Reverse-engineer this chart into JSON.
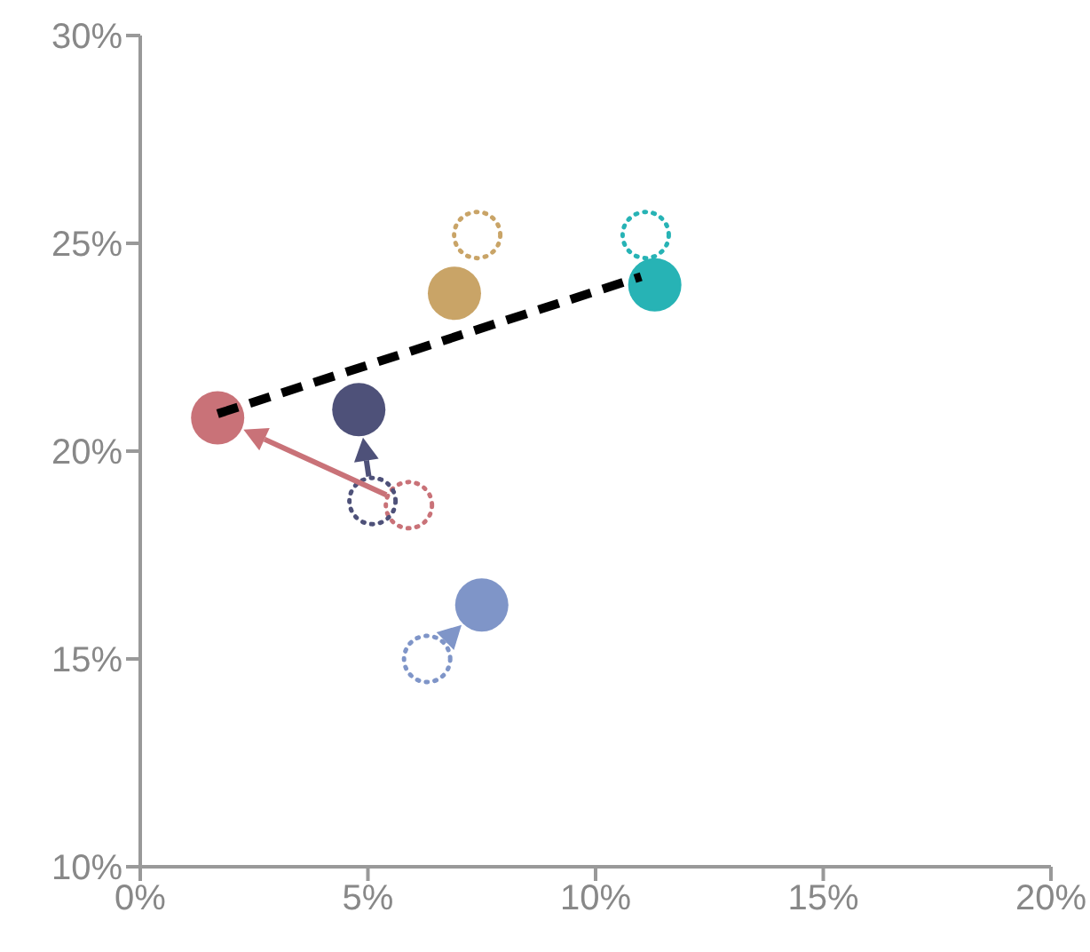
{
  "chart_data": {
    "type": "scatter",
    "xlim": [
      0,
      20
    ],
    "ylim": [
      10,
      30
    ],
    "xticks": [
      {
        "value": 0,
        "label": "0%"
      },
      {
        "value": 5,
        "label": "5%"
      },
      {
        "value": 10,
        "label": "10%"
      },
      {
        "value": 15,
        "label": "15%"
      },
      {
        "value": 20,
        "label": "20%"
      }
    ],
    "yticks": [
      {
        "value": 10,
        "label": "10%"
      },
      {
        "value": 15,
        "label": "15%"
      },
      {
        "value": 20,
        "label": "20%"
      },
      {
        "value": 25,
        "label": "25%"
      },
      {
        "value": 30,
        "label": "30%"
      }
    ],
    "marker": "circle",
    "series": [
      {
        "color": "#c97278",
        "x": [
          5.9
        ],
        "values": [
          18.7
        ],
        "line_style": "dotted"
      },
      {
        "color": "#c97278",
        "x": [
          1.7
        ],
        "values": [
          20.8
        ]
      },
      {
        "color": "#4e5179",
        "x": [
          5.1
        ],
        "values": [
          18.8
        ],
        "line_style": "dotted"
      },
      {
        "color": "#4e5179",
        "x": [
          4.8
        ],
        "values": [
          21.0
        ]
      },
      {
        "color": "#c9a467",
        "x": [
          7.4
        ],
        "values": [
          25.2
        ],
        "line_style": "dotted"
      },
      {
        "color": "#c9a467",
        "x": [
          6.9
        ],
        "values": [
          23.8
        ]
      },
      {
        "color": "#27b3b5",
        "x": [
          11.1
        ],
        "values": [
          25.2
        ],
        "line_style": "dotted"
      },
      {
        "color": "#27b3b5",
        "x": [
          11.3
        ],
        "values": [
          24.0
        ]
      },
      {
        "color": "#7f95c8",
        "x": [
          6.3
        ],
        "values": [
          15.0
        ],
        "line_style": "dotted"
      },
      {
        "color": "#7f95c8",
        "x": [
          7.5
        ],
        "values": [
          16.3
        ]
      },
      {
        "type": "line",
        "color": "#000000",
        "x": [
          1.7,
          11.0
        ],
        "values": [
          20.9,
          24.2
        ],
        "line_style": "dashed",
        "marker": "none"
      }
    ]
  }
}
